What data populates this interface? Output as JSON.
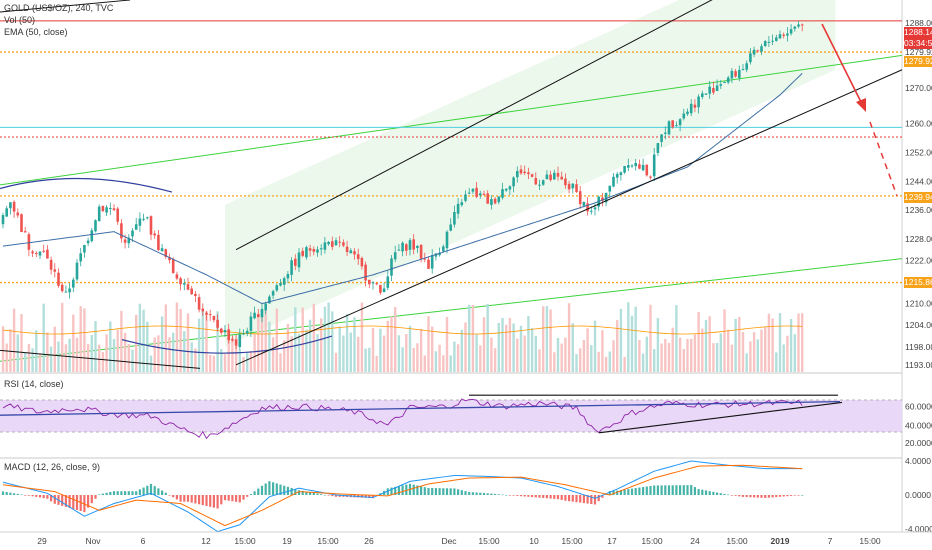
{
  "header": {
    "symbol_line": "GOLD (US$/OZ), 240, TVC",
    "volume_line": "Vol (50)",
    "ema_line": "EMA (50, close)"
  },
  "price_tags": {
    "last": "1288.14",
    "countdown": "03:34:52",
    "level_1": "1279.92",
    "level_2": "1239.94",
    "level_3": "1215.86"
  },
  "rsi_pane": {
    "title": "RSI (14, close)",
    "ticks": [
      "60.0000",
      "40.0000",
      "20.0000"
    ]
  },
  "macd_pane": {
    "title": "MACD (12, 26, close, 9)",
    "ticks": [
      "4.0000",
      "0.0000",
      "-4.0000"
    ]
  },
  "colors": {
    "up": "#26a69a",
    "down": "#ef5350",
    "ema": "#3c6fa6",
    "channel": "#111111",
    "trendline_green": "#3cd23c",
    "level_orange": "#f7a21b",
    "level_red": "#e53935",
    "arrow_red": "#e53935",
    "rsi_line": "#8e24aa",
    "rsi_band": "#e9d8f7",
    "macd_line": "#2196f3",
    "signal_line": "#ff6d00"
  },
  "chart_data": {
    "type": "candlestick",
    "instrument": "GOLD (US$/OZ)",
    "timeframe": "240",
    "source": "TVC",
    "price_axis_ticks": [
      1288.0,
      1279.92,
      1270.0,
      1260.0,
      1252.0,
      1244.0,
      1239.94,
      1236.0,
      1228.0,
      1222.0,
      1215.86,
      1210.0,
      1204.0,
      1198.0,
      1193.0
    ],
    "price_axis_labels": [
      "1288.00",
      "1279.92",
      "1270.00",
      "1260.00",
      "1252.00",
      "1244.00",
      "1239.94",
      "1236.00",
      "1228.00",
      "1222.00",
      "1215.86",
      "1210.00",
      "1204.00",
      "1198.00",
      "1193.00"
    ],
    "x_tick_labels": [
      "29",
      "Nov",
      "6",
      "12",
      "15:00",
      "19",
      "15:00",
      "26",
      "Dec",
      "15:00",
      "10",
      "15:00",
      "17",
      "15:00",
      "24",
      "15:00",
      "2019",
      "7",
      "15:00"
    ],
    "price_anchors": [
      [
        0,
        1232
      ],
      [
        3,
        1239
      ],
      [
        8,
        1226
      ],
      [
        12,
        1224
      ],
      [
        18,
        1212
      ],
      [
        23,
        1226
      ],
      [
        27,
        1237
      ],
      [
        31,
        1236
      ],
      [
        34,
        1226
      ],
      [
        39,
        1235
      ],
      [
        42,
        1228
      ],
      [
        47,
        1219
      ],
      [
        52,
        1214
      ],
      [
        55,
        1207
      ],
      [
        60,
        1203
      ],
      [
        64,
        1199
      ],
      [
        68,
        1205
      ],
      [
        73,
        1212
      ],
      [
        77,
        1218
      ],
      [
        81,
        1223
      ],
      [
        85,
        1226
      ],
      [
        90,
        1227
      ],
      [
        95,
        1224
      ],
      [
        99,
        1218
      ],
      [
        103,
        1213
      ],
      [
        107,
        1224
      ],
      [
        111,
        1227
      ],
      [
        116,
        1221
      ],
      [
        120,
        1227
      ],
      [
        125,
        1239
      ],
      [
        128,
        1241
      ],
      [
        133,
        1238
      ],
      [
        137,
        1243
      ],
      [
        141,
        1247
      ],
      [
        146,
        1244
      ],
      [
        150,
        1245
      ],
      [
        155,
        1242
      ],
      [
        160,
        1235
      ],
      [
        165,
        1243
      ],
      [
        170,
        1250
      ],
      [
        173,
        1248
      ],
      [
        176,
        1246
      ],
      [
        179,
        1258
      ],
      [
        184,
        1262
      ],
      [
        189,
        1267
      ],
      [
        194,
        1271
      ],
      [
        199,
        1274
      ],
      [
        204,
        1279
      ],
      [
        209,
        1284
      ],
      [
        214,
        1286
      ],
      [
        216,
        1288
      ]
    ],
    "ema_50_approx": [
      [
        0,
        1226
      ],
      [
        30,
        1230
      ],
      [
        55,
        1218
      ],
      [
        70,
        1210
      ],
      [
        100,
        1218
      ],
      [
        130,
        1228
      ],
      [
        160,
        1238
      ],
      [
        185,
        1248
      ],
      [
        210,
        1268
      ],
      [
        216,
        1274
      ]
    ],
    "levels": [
      {
        "price": 1288.6,
        "style": "solid",
        "color": "red"
      },
      {
        "price": 1279.92,
        "style": "dotted",
        "color": "orange"
      },
      {
        "price": 1256.3,
        "style": "dotted",
        "color": "red"
      },
      {
        "price": 1239.94,
        "style": "dotted",
        "color": "orange"
      },
      {
        "price": 1215.86,
        "style": "dotted",
        "color": "orange"
      }
    ],
    "rsi_approx": [
      [
        0,
        63
      ],
      [
        10,
        55
      ],
      [
        20,
        60
      ],
      [
        30,
        52
      ],
      [
        40,
        50
      ],
      [
        47,
        36
      ],
      [
        52,
        28
      ],
      [
        56,
        25
      ],
      [
        62,
        40
      ],
      [
        70,
        60
      ],
      [
        80,
        62
      ],
      [
        90,
        58
      ],
      [
        95,
        55
      ],
      [
        100,
        46
      ],
      [
        104,
        38
      ],
      [
        110,
        60
      ],
      [
        120,
        62
      ],
      [
        125,
        70
      ],
      [
        135,
        62
      ],
      [
        145,
        66
      ],
      [
        155,
        60
      ],
      [
        160,
        32
      ],
      [
        163,
        35
      ],
      [
        170,
        54
      ],
      [
        174,
        60
      ],
      [
        180,
        66
      ],
      [
        190,
        64
      ],
      [
        200,
        65
      ],
      [
        210,
        66
      ],
      [
        216,
        66
      ]
    ],
    "macd_approx": [
      [
        0,
        1.5
      ],
      [
        12,
        0.2
      ],
      [
        22,
        -2.5
      ],
      [
        30,
        -1.0
      ],
      [
        40,
        0.2
      ],
      [
        50,
        -2.0
      ],
      [
        58,
        -4.3
      ],
      [
        64,
        -3.5
      ],
      [
        72,
        -0.2
      ],
      [
        80,
        0.8
      ],
      [
        90,
        0.0
      ],
      [
        100,
        -0.3
      ],
      [
        110,
        1.6
      ],
      [
        122,
        2.3
      ],
      [
        130,
        2.2
      ],
      [
        140,
        2.0
      ],
      [
        150,
        1.0
      ],
      [
        160,
        -0.4
      ],
      [
        166,
        0.7
      ],
      [
        176,
        2.8
      ],
      [
        186,
        4.0
      ],
      [
        196,
        3.5
      ],
      [
        206,
        3.1
      ],
      [
        216,
        3.1
      ]
    ],
    "signal_approx": [
      [
        0,
        1.2
      ],
      [
        14,
        0.4
      ],
      [
        26,
        -1.8
      ],
      [
        36,
        -0.6
      ],
      [
        48,
        -1.0
      ],
      [
        60,
        -3.6
      ],
      [
        70,
        -1.8
      ],
      [
        80,
        0.4
      ],
      [
        92,
        0.1
      ],
      [
        104,
        -0.1
      ],
      [
        115,
        1.3
      ],
      [
        126,
        2.0
      ],
      [
        140,
        2.1
      ],
      [
        152,
        1.2
      ],
      [
        164,
        0.0
      ],
      [
        176,
        2.0
      ],
      [
        188,
        3.4
      ],
      [
        200,
        3.5
      ],
      [
        216,
        3.1
      ]
    ]
  }
}
